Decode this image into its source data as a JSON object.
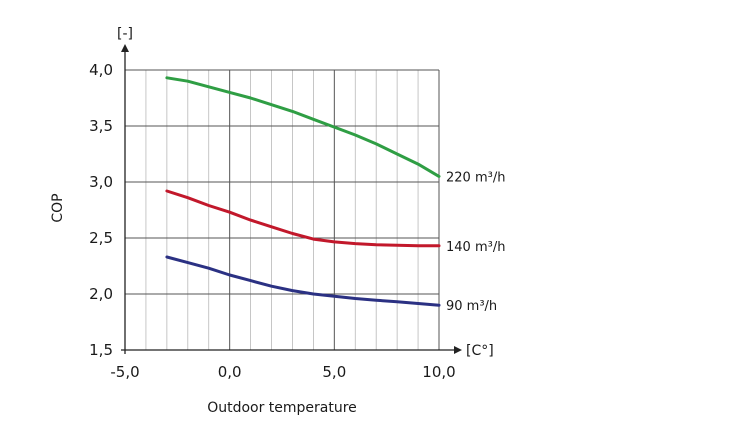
{
  "chart_data": {
    "type": "line",
    "title": "",
    "xlabel": "Outdoor temperature",
    "ylabel": "COP",
    "x_unit": "[C°]",
    "y_unit": "[-]",
    "xlim": [
      -5,
      10
    ],
    "ylim": [
      1.5,
      4
    ],
    "x_ticks": [
      {
        "value": -5,
        "label": "-5,0"
      },
      {
        "value": 0,
        "label": "0,0"
      },
      {
        "value": 5,
        "label": "5,0"
      },
      {
        "value": 10,
        "label": "10,0"
      }
    ],
    "y_ticks": [
      {
        "value": 1.5,
        "label": "1,5"
      },
      {
        "value": 2.0,
        "label": "2,0"
      },
      {
        "value": 2.5,
        "label": "2,5"
      },
      {
        "value": 3.0,
        "label": "3,0"
      },
      {
        "value": 3.5,
        "label": "3,5"
      },
      {
        "value": 4.0,
        "label": "4,0"
      }
    ],
    "minor_grid_step": 1,
    "grid": true,
    "legend": "inline-right",
    "series": [
      {
        "name": "220 m³/h",
        "color": "#2f9e44",
        "x": [
          -3,
          -2,
          -1,
          0,
          1,
          2,
          3,
          4,
          5,
          6,
          7,
          8,
          9,
          10
        ],
        "y": [
          3.93,
          3.9,
          3.85,
          3.8,
          3.75,
          3.69,
          3.63,
          3.56,
          3.49,
          3.42,
          3.34,
          3.25,
          3.16,
          3.05
        ]
      },
      {
        "name": "140 m³/h",
        "color": "#c2182b",
        "x": [
          -3,
          -2,
          -1,
          0,
          1,
          2,
          3,
          4,
          5,
          6,
          7,
          8,
          9,
          10
        ],
        "y": [
          2.92,
          2.86,
          2.79,
          2.73,
          2.66,
          2.6,
          2.54,
          2.49,
          2.465,
          2.45,
          2.44,
          2.435,
          2.43,
          2.43
        ]
      },
      {
        "name": "90 m³/h",
        "color": "#2b3183",
        "x": [
          -3,
          -2,
          -1,
          0,
          1,
          2,
          3,
          4,
          5,
          6,
          7,
          8,
          9,
          10
        ],
        "y": [
          2.33,
          2.28,
          2.23,
          2.17,
          2.12,
          2.07,
          2.03,
          2.0,
          1.98,
          1.96,
          1.945,
          1.93,
          1.915,
          1.9
        ]
      }
    ]
  }
}
